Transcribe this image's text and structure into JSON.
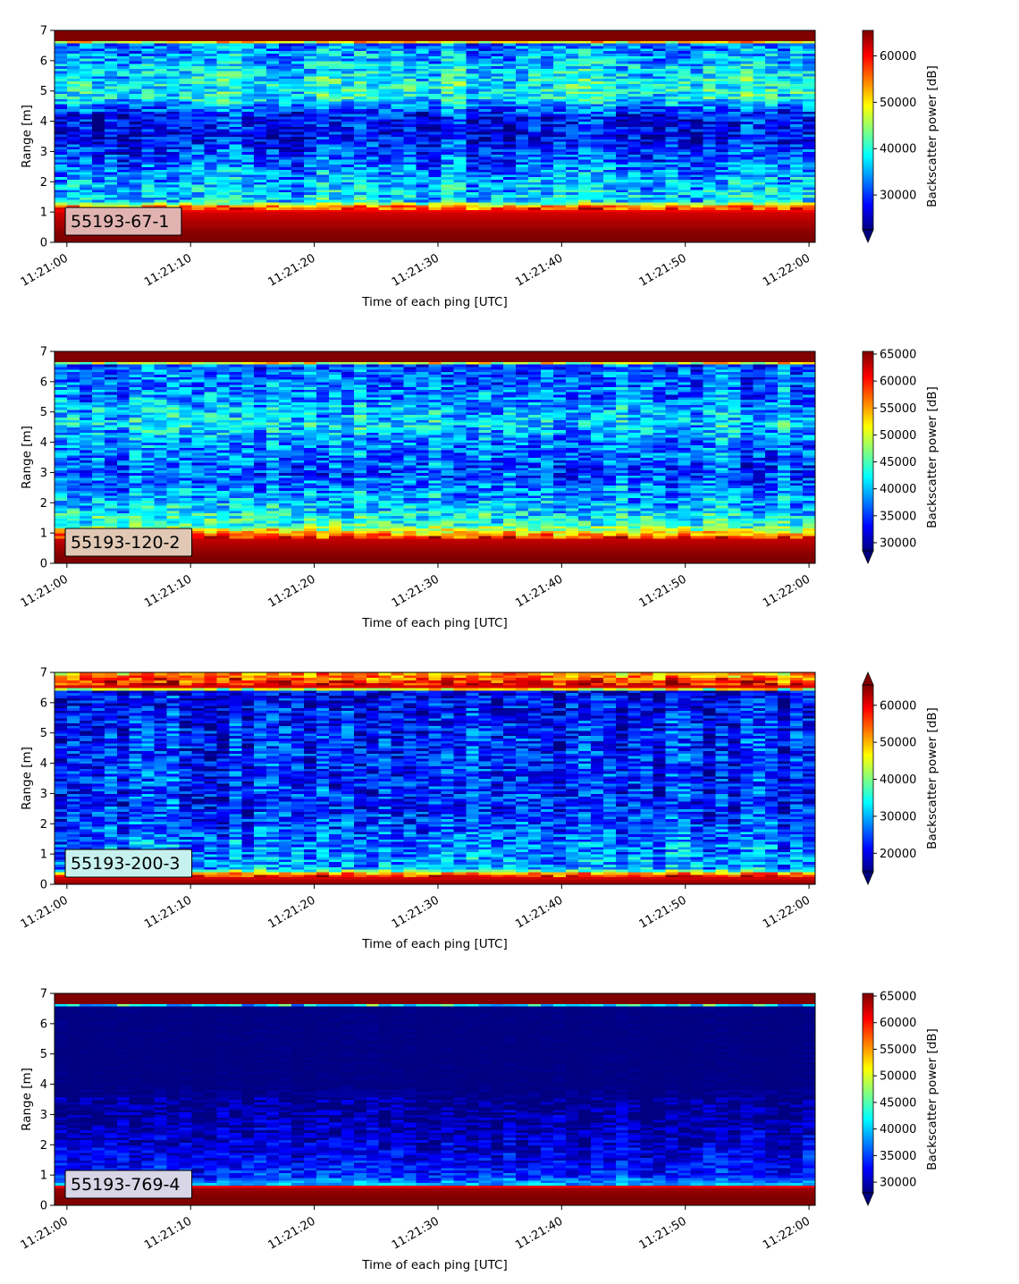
{
  "chart_data": [
    {
      "type": "heatmap",
      "label": "55193-67-1",
      "label_box_color": "#e0b3b1",
      "xlabel": "Time of each ping [UTC]",
      "ylabel": "Range [m]",
      "colorbar_label": "Backscatter power [dB]",
      "xlim": [
        "11:20:59",
        "11:22:00.5"
      ],
      "ylim": [
        0,
        7
      ],
      "x_ticks": [
        "11:21:00",
        "11:21:10",
        "11:21:20",
        "11:21:30",
        "11:21:40",
        "11:21:50",
        "11:22:00"
      ],
      "y_ticks": [
        0,
        1,
        2,
        3,
        4,
        5,
        6,
        7
      ],
      "colorbar_ticks": [
        30000,
        40000,
        50000,
        60000
      ],
      "color_range": [
        22500,
        65500
      ],
      "colorbar_extend": "min",
      "colormap": "jet",
      "profile": [
        {
          "range": 0.0,
          "value": 65500
        },
        {
          "range": 0.25,
          "value": 65500
        },
        {
          "range": 1.0,
          "value": 62000
        },
        {
          "range": 1.2,
          "value": 55000
        },
        {
          "range": 1.35,
          "value": 38000
        },
        {
          "range": 2.0,
          "value": 36000
        },
        {
          "range": 3.5,
          "value": 28000
        },
        {
          "range": 4.2,
          "value": 28500
        },
        {
          "range": 4.8,
          "value": 39000
        },
        {
          "range": 5.2,
          "value": 39500
        },
        {
          "range": 6.0,
          "value": 36000
        },
        {
          "range": 6.6,
          "value": 33000
        },
        {
          "range": 6.65,
          "value": 65500
        },
        {
          "range": 7.0,
          "value": 65500
        }
      ]
    },
    {
      "type": "heatmap",
      "label": "55193-120-2",
      "label_box_color": "#e0c8b4",
      "xlabel": "Time of each ping [UTC]",
      "ylabel": "Range [m]",
      "colorbar_label": "Backscatter power [dB]",
      "xlim": [
        "11:20:59",
        "11:22:00.5"
      ],
      "ylim": [
        0,
        7
      ],
      "x_ticks": [
        "11:21:00",
        "11:21:10",
        "11:21:20",
        "11:21:30",
        "11:21:40",
        "11:21:50",
        "11:22:00"
      ],
      "y_ticks": [
        0,
        1,
        2,
        3,
        4,
        5,
        6,
        7
      ],
      "colorbar_ticks": [
        30000,
        35000,
        40000,
        45000,
        50000,
        55000,
        60000,
        65000
      ],
      "color_range": [
        28500,
        65500
      ],
      "colorbar_extend": "min",
      "colormap": "jet",
      "profile": [
        {
          "range": 0.0,
          "value": 65500
        },
        {
          "range": 0.25,
          "value": 65500
        },
        {
          "range": 0.8,
          "value": 63000
        },
        {
          "range": 1.0,
          "value": 54000
        },
        {
          "range": 1.3,
          "value": 44000
        },
        {
          "range": 2.0,
          "value": 40000
        },
        {
          "range": 3.0,
          "value": 36000
        },
        {
          "range": 4.0,
          "value": 38000
        },
        {
          "range": 4.6,
          "value": 41500
        },
        {
          "range": 5.5,
          "value": 38000
        },
        {
          "range": 6.6,
          "value": 36000
        },
        {
          "range": 6.65,
          "value": 65500
        },
        {
          "range": 7.0,
          "value": 65500
        }
      ]
    },
    {
      "type": "heatmap",
      "label": "55193-200-3",
      "label_box_color": "#c7f1ee",
      "xlabel": "Time of each ping [UTC]",
      "ylabel": "Range [m]",
      "colorbar_label": "Backscatter power [dB]",
      "xlim": [
        "11:20:59",
        "11:22:00.5"
      ],
      "ylim": [
        0,
        7
      ],
      "x_ticks": [
        "11:21:00",
        "11:21:10",
        "11:21:20",
        "11:21:30",
        "11:21:40",
        "11:21:50",
        "11:22:00"
      ],
      "y_ticks": [
        0,
        1,
        2,
        3,
        4,
        5,
        6,
        7
      ],
      "colorbar_ticks": [
        20000,
        30000,
        40000,
        50000,
        60000
      ],
      "color_range": [
        15000,
        65500
      ],
      "colorbar_extend": "both",
      "colormap": "jet",
      "profile": [
        {
          "range": 0.0,
          "value": 65500
        },
        {
          "range": 0.2,
          "value": 62000
        },
        {
          "range": 0.35,
          "value": 55000
        },
        {
          "range": 0.5,
          "value": 30000
        },
        {
          "range": 1.0,
          "value": 28000
        },
        {
          "range": 2.5,
          "value": 23000
        },
        {
          "range": 4.0,
          "value": 23000
        },
        {
          "range": 5.5,
          "value": 22000
        },
        {
          "range": 6.4,
          "value": 20000
        },
        {
          "range": 6.5,
          "value": 62000
        },
        {
          "range": 6.75,
          "value": 56000
        },
        {
          "range": 7.0,
          "value": 50000
        }
      ]
    },
    {
      "type": "heatmap",
      "label": "55193-769-4",
      "label_box_color": "#d7d5e6",
      "xlabel": "Time of each ping [UTC]",
      "ylabel": "Range [m]",
      "colorbar_label": "Backscatter power [dB]",
      "xlim": [
        "11:20:59",
        "11:22:00.5"
      ],
      "ylim": [
        0,
        7
      ],
      "x_ticks": [
        "11:21:00",
        "11:21:10",
        "11:21:20",
        "11:21:30",
        "11:21:40",
        "11:21:50",
        "11:22:00"
      ],
      "y_ticks": [
        0,
        1,
        2,
        3,
        4,
        5,
        6,
        7
      ],
      "colorbar_ticks": [
        30000,
        35000,
        40000,
        45000,
        50000,
        55000,
        60000,
        65000
      ],
      "color_range": [
        28000,
        65500
      ],
      "colorbar_extend": "min",
      "colormap": "jet",
      "profile": [
        {
          "range": 0.0,
          "value": 65500
        },
        {
          "range": 0.3,
          "value": 65500
        },
        {
          "range": 0.62,
          "value": 64000
        },
        {
          "range": 0.68,
          "value": 40000
        },
        {
          "range": 1.0,
          "value": 34000
        },
        {
          "range": 2.0,
          "value": 31000
        },
        {
          "range": 3.0,
          "value": 29000
        },
        {
          "range": 4.0,
          "value": 28000
        },
        {
          "range": 6.6,
          "value": 28000
        },
        {
          "range": 6.65,
          "value": 55000
        },
        {
          "range": 6.7,
          "value": 65500
        },
        {
          "range": 7.0,
          "value": 65500
        }
      ]
    }
  ]
}
